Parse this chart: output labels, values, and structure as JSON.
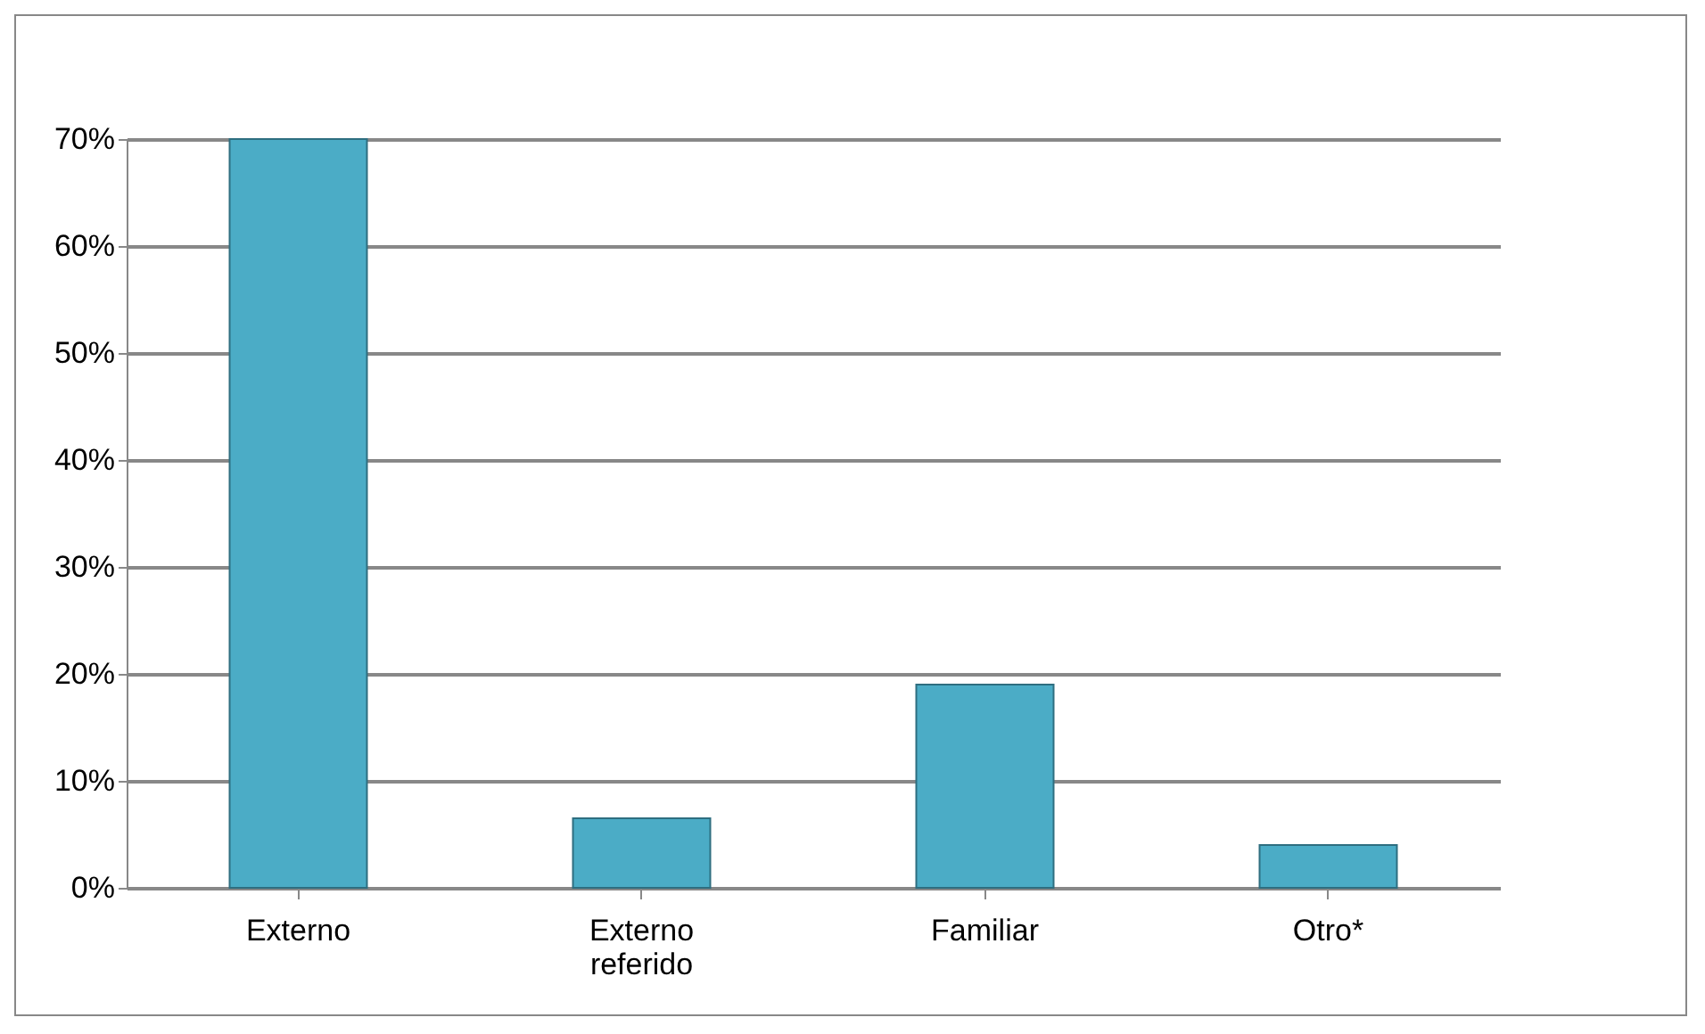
{
  "chart_data": {
    "type": "bar",
    "categories": [
      "Externo",
      "Externo referido",
      "Familiar",
      "Otro*"
    ],
    "values": [
      70,
      6.5,
      19,
      4
    ],
    "color": "#4bacc6",
    "ylim": [
      0,
      70
    ],
    "yticks": [
      {
        "value": 0,
        "label": "0%"
      },
      {
        "value": 10,
        "label": "10%"
      },
      {
        "value": 20,
        "label": "20%"
      },
      {
        "value": 30,
        "label": "30%"
      },
      {
        "value": 40,
        "label": "40%"
      },
      {
        "value": 50,
        "label": "50%"
      },
      {
        "value": 60,
        "label": "60%"
      },
      {
        "value": 70,
        "label": "70%"
      }
    ],
    "grid": true
  }
}
